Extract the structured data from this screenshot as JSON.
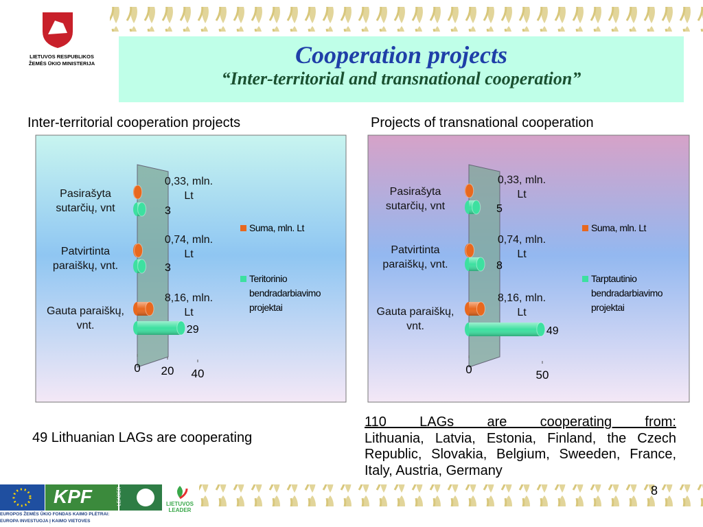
{
  "header": {
    "ministry": [
      "LIETUVOS RESPUBLIKOS",
      "ŽEMĖS ŪKIO MINISTERIJA"
    ],
    "title": "Cooperation projects",
    "subtitle": "“Inter-territorial and transnational  cooperation”"
  },
  "chart_data": [
    {
      "type": "bar",
      "orientation": "horizontal",
      "title": "Inter-territorial cooperation projects",
      "categories": [
        "Pasirašyta sutarčių, vnt",
        "Patvirtinta paraiškų, vnt.",
        "Gauta paraiškų, vnt."
      ],
      "series": [
        {
          "name": "Suma, mln. Lt",
          "color": "#e8681e",
          "values": [
            0.33,
            0.74,
            8.16
          ],
          "value_labels": [
            "0,33, mln. Lt",
            "0,74, mln. Lt",
            "8,16, mln. Lt"
          ]
        },
        {
          "name": "Teritorinio bendradarbiavimo projektai",
          "color": "#3de0a0",
          "values": [
            3,
            3,
            29
          ]
        }
      ],
      "xlim": [
        0,
        40
      ],
      "xticks": [
        0,
        20,
        40
      ],
      "legend": "right"
    },
    {
      "type": "bar",
      "orientation": "horizontal",
      "title": "Projects of transnational  cooperation",
      "categories": [
        "Pasirašyta sutarčių, vnt",
        "Patvirtinta paraiškų, vnt.",
        "Gauta paraiškų, vnt."
      ],
      "series": [
        {
          "name": "Suma, mln. Lt",
          "color": "#e8681e",
          "values": [
            0.33,
            0.74,
            8.16
          ],
          "value_labels": [
            "0,33, mln. Lt",
            "0,74, mln. Lt",
            "8,16, mln. Lt"
          ]
        },
        {
          "name": "Tarptautinio bendradarbiavimo projektai",
          "color": "#3de0a0",
          "values": [
            5,
            8,
            49
          ]
        }
      ],
      "xlim": [
        0,
        50
      ],
      "xticks": [
        0,
        50
      ],
      "legend": "right"
    }
  ],
  "notes": {
    "left": "49 Lithuanian LAGs are cooperating",
    "right_head": "110 LAGs are cooperating from:",
    "right_body": "Lithuania, Latvia, Estonia, Finland, the Czech Republic, Slovakia, Belgium, Sweeden, France, Italy, Austria, Germany"
  },
  "footer": {
    "kpf": "KPF",
    "leader": "LEADER",
    "lt_leader": [
      "LIETUVOS",
      "LEADER"
    ],
    "eu": [
      "EUROPOS ŽEMĖS ŪKIO FONDAS KAIMO PLĖTRAI:",
      "EUROPA INVESTUOJA Į KAIMO VIETOVES"
    ],
    "page": "8"
  }
}
